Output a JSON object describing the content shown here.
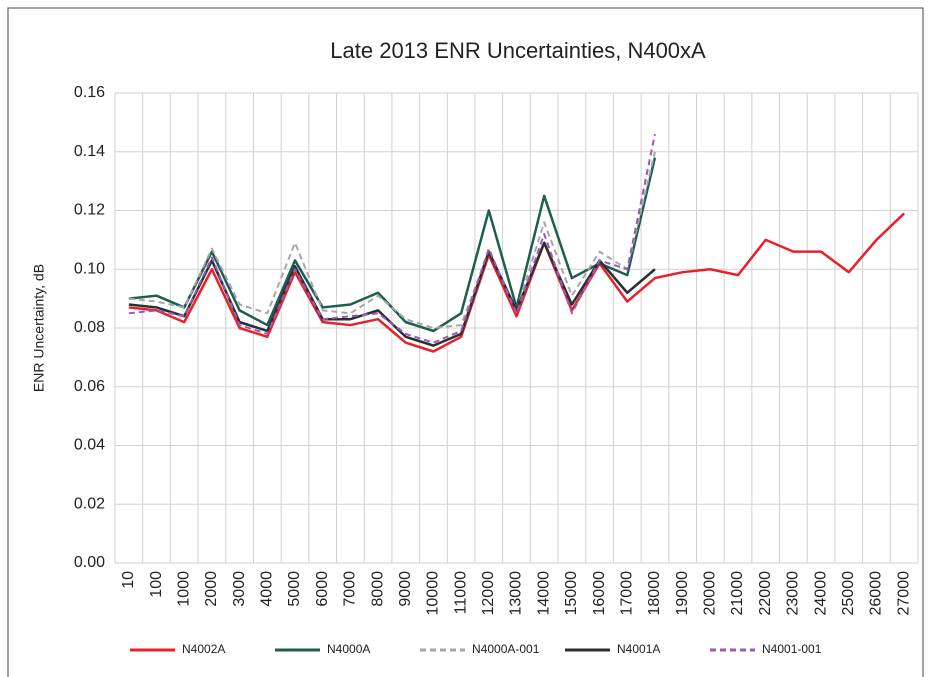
{
  "chart_data": {
    "type": "line",
    "title": "Late 2013 ENR Uncertainties, N400xA",
    "y_label": "ENR Uncertainty, dB",
    "categories": [
      "10",
      "100",
      "1000",
      "2000",
      "3000",
      "4000",
      "5000",
      "6000",
      "7000",
      "8000",
      "9000",
      "10000",
      "11000",
      "12000",
      "13000",
      "14000",
      "15000",
      "16000",
      "17000",
      "18000",
      "19000",
      "20000",
      "21000",
      "22000",
      "23000",
      "24000",
      "25000",
      "26000",
      "27000"
    ],
    "ylim": [
      0,
      0.16
    ],
    "yticks": [
      {
        "value": 0,
        "label": "0.00"
      },
      0.02,
      0.04,
      0.06,
      0.08,
      {
        "value": 0.1,
        "label": "0.10"
      },
      0.12,
      0.14,
      0.16
    ],
    "grid": true,
    "legend": "bottom",
    "series": [
      {
        "name": "N4002A",
        "color": "#e8202a",
        "dash": false,
        "values": [
          0.087,
          0.086,
          0.082,
          0.1,
          0.08,
          0.077,
          0.099,
          0.082,
          0.081,
          0.083,
          0.075,
          0.072,
          0.077,
          0.105,
          0.084,
          0.109,
          0.086,
          0.102,
          0.089,
          0.097,
          0.099,
          0.1,
          0.098,
          0.11,
          0.106,
          0.106,
          0.099,
          0.11,
          0.119
        ]
      },
      {
        "name": "N4000A",
        "color": "#1e5e50",
        "dash": false,
        "values": [
          0.09,
          0.091,
          0.087,
          0.106,
          0.086,
          0.081,
          0.103,
          0.087,
          0.088,
          0.092,
          0.082,
          0.079,
          0.085,
          0.12,
          0.087,
          0.125,
          0.097,
          0.102,
          0.098,
          0.138,
          null,
          null,
          null,
          null,
          null,
          null,
          null,
          null,
          null
        ]
      },
      {
        "name": "N4000A-001",
        "color": "#a6a6a6",
        "dash": true,
        "values": [
          0.09,
          0.089,
          0.087,
          0.107,
          0.088,
          0.085,
          0.109,
          0.086,
          0.085,
          0.091,
          0.083,
          0.08,
          0.081,
          0.106,
          0.086,
          0.116,
          0.091,
          0.106,
          0.1,
          0.14,
          null,
          null,
          null,
          null,
          null,
          null,
          null,
          null,
          null
        ]
      },
      {
        "name": "N4001A",
        "color": "#2b2f33",
        "dash": false,
        "values": [
          0.088,
          0.087,
          0.084,
          0.103,
          0.082,
          0.079,
          0.101,
          0.083,
          0.083,
          0.086,
          0.077,
          0.074,
          0.078,
          0.106,
          0.086,
          0.109,
          0.088,
          0.103,
          0.092,
          0.1,
          null,
          null,
          null,
          null,
          null,
          null,
          null,
          null,
          null
        ]
      },
      {
        "name": "N4001-001",
        "color": "#9b59b6",
        "dash": true,
        "values": [
          0.085,
          0.086,
          0.084,
          0.104,
          0.081,
          0.078,
          0.1,
          0.083,
          0.084,
          0.085,
          0.078,
          0.075,
          0.079,
          0.107,
          0.085,
          0.112,
          0.085,
          0.103,
          0.1,
          0.146,
          null,
          null,
          null,
          null,
          null,
          null,
          null,
          null,
          null
        ]
      }
    ]
  }
}
